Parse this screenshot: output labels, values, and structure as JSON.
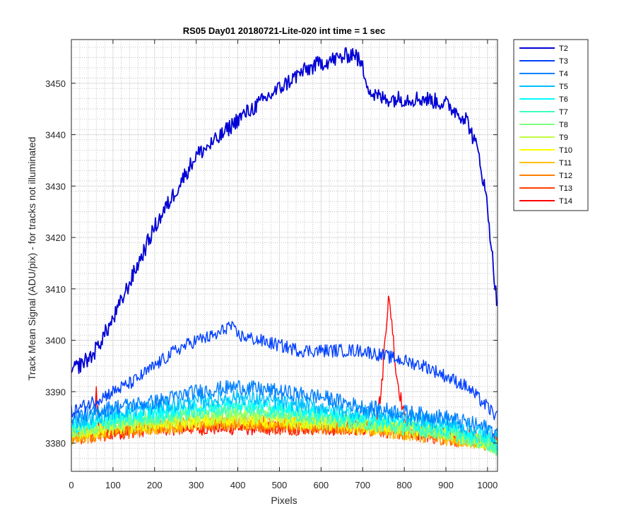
{
  "chart_data": {
    "type": "line",
    "title": "RS05 Day01 20180721-Lite-020 int time = 1 sec",
    "xlabel": "Pixels",
    "ylabel": "Track Mean Signal (ADU/pix) - for tracks not illuminated",
    "xlim": [
      0,
      1024
    ],
    "ylim": [
      3374.5,
      3458.5
    ],
    "xticks": [
      0,
      100,
      200,
      300,
      400,
      500,
      600,
      700,
      800,
      900,
      1000
    ],
    "yticks": [
      3380,
      3390,
      3400,
      3410,
      3420,
      3430,
      3440,
      3450
    ],
    "grid": "major and minor",
    "legend_position": "outside-right-top",
    "series": [
      {
        "name": "T2",
        "color": "#0000D5",
        "x": [
          0,
          50,
          100,
          150,
          200,
          250,
          300,
          350,
          400,
          450,
          500,
          550,
          600,
          650,
          680,
          700,
          720,
          750,
          800,
          850,
          900,
          950,
          980,
          1000,
          1024
        ],
        "y": [
          3394,
          3397,
          3404,
          3413,
          3422,
          3429,
          3436,
          3439,
          3443,
          3446,
          3449,
          3452,
          3454,
          3455,
          3456,
          3453,
          3448,
          3447,
          3447,
          3447,
          3446,
          3443,
          3436,
          3426,
          3406
        ]
      },
      {
        "name": "T3",
        "color": "#0040FF",
        "x": [
          0,
          50,
          100,
          150,
          200,
          250,
          300,
          350,
          380,
          400,
          450,
          500,
          550,
          600,
          650,
          700,
          750,
          800,
          850,
          900,
          950,
          1000,
          1024
        ],
        "y": [
          3386,
          3388,
          3390,
          3392,
          3395,
          3398,
          3400,
          3401,
          3403,
          3401,
          3400,
          3399,
          3398,
          3398,
          3398,
          3398,
          3397,
          3396,
          3395,
          3393,
          3391,
          3387,
          3385
        ]
      },
      {
        "name": "T4",
        "color": "#0080FF",
        "x": [
          0,
          100,
          200,
          300,
          400,
          500,
          600,
          700,
          800,
          900,
          1000,
          1024
        ],
        "y": [
          3385,
          3387,
          3388,
          3390,
          3391,
          3390,
          3389,
          3387,
          3386,
          3385,
          3383,
          3382
        ]
      },
      {
        "name": "T5",
        "color": "#00BFFF",
        "x": [
          0,
          100,
          200,
          300,
          400,
          500,
          600,
          700,
          800,
          900,
          1000,
          1024
        ],
        "y": [
          3384,
          3386,
          3387,
          3388,
          3389,
          3388,
          3387,
          3386,
          3385,
          3384,
          3382,
          3381
        ]
      },
      {
        "name": "T6",
        "color": "#00FFFF",
        "x": [
          0,
          100,
          200,
          300,
          400,
          500,
          600,
          700,
          800,
          900,
          1000,
          1024
        ],
        "y": [
          3383,
          3385,
          3386,
          3387,
          3388,
          3387,
          3386,
          3385,
          3384,
          3383,
          3381,
          3380
        ]
      },
      {
        "name": "T7",
        "color": "#40FFBF",
        "x": [
          0,
          100,
          200,
          300,
          400,
          500,
          600,
          700,
          800,
          900,
          1000,
          1024
        ],
        "y": [
          3383,
          3384,
          3385,
          3386,
          3387,
          3386,
          3385,
          3384,
          3383,
          3382,
          3380,
          3379
        ]
      },
      {
        "name": "T8",
        "color": "#80FF80",
        "x": [
          0,
          100,
          200,
          300,
          400,
          500,
          600,
          700,
          800,
          900,
          1000,
          1024
        ],
        "y": [
          3382,
          3384,
          3385,
          3386,
          3386,
          3386,
          3385,
          3384,
          3383,
          3382,
          3380,
          3379
        ]
      },
      {
        "name": "T9",
        "color": "#BFFF40",
        "x": [
          0,
          100,
          200,
          300,
          400,
          500,
          600,
          700,
          800,
          900,
          1000,
          1024
        ],
        "y": [
          3382,
          3383,
          3384,
          3385,
          3385,
          3385,
          3384,
          3384,
          3383,
          3382,
          3380,
          3379
        ]
      },
      {
        "name": "T10",
        "color": "#FFFF00",
        "x": [
          0,
          100,
          200,
          300,
          400,
          500,
          600,
          700,
          800,
          900,
          1000,
          1024
        ],
        "y": [
          3382,
          3383,
          3384,
          3384,
          3385,
          3384,
          3384,
          3383,
          3383,
          3382,
          3380,
          3379
        ]
      },
      {
        "name": "T11",
        "color": "#FFBF00",
        "x": [
          0,
          100,
          200,
          300,
          400,
          500,
          600,
          700,
          800,
          900,
          1000,
          1024
        ],
        "y": [
          3381,
          3383,
          3383,
          3384,
          3384,
          3384,
          3384,
          3383,
          3382,
          3381,
          3380,
          3379
        ]
      },
      {
        "name": "T12",
        "color": "#FF8000",
        "x": [
          0,
          100,
          200,
          300,
          400,
          500,
          600,
          700,
          800,
          900,
          1000,
          1024
        ],
        "y": [
          3381,
          3382,
          3383,
          3384,
          3384,
          3384,
          3383,
          3383,
          3382,
          3381,
          3380,
          3380
        ]
      },
      {
        "name": "T13",
        "color": "#FF4000",
        "x": [
          0,
          100,
          200,
          300,
          400,
          500,
          600,
          700,
          800,
          900,
          1000,
          1024
        ],
        "y": [
          3381,
          3382,
          3383,
          3383,
          3384,
          3383,
          3383,
          3383,
          3382,
          3381,
          3380,
          3380
        ]
      },
      {
        "name": "T14",
        "color": "#FF0000",
        "x": [
          0,
          40,
          55,
          60,
          65,
          80,
          100,
          200,
          300,
          400,
          500,
          600,
          700,
          730,
          745,
          755,
          762,
          770,
          780,
          800,
          820,
          900,
          1000,
          1024
        ],
        "y": [
          3381,
          3382,
          3385,
          3390,
          3384,
          3382,
          3382,
          3383,
          3383,
          3383,
          3383,
          3383,
          3383,
          3384,
          3390,
          3402,
          3408,
          3404,
          3394,
          3385,
          3382,
          3382,
          3381,
          3380
        ]
      }
    ]
  }
}
